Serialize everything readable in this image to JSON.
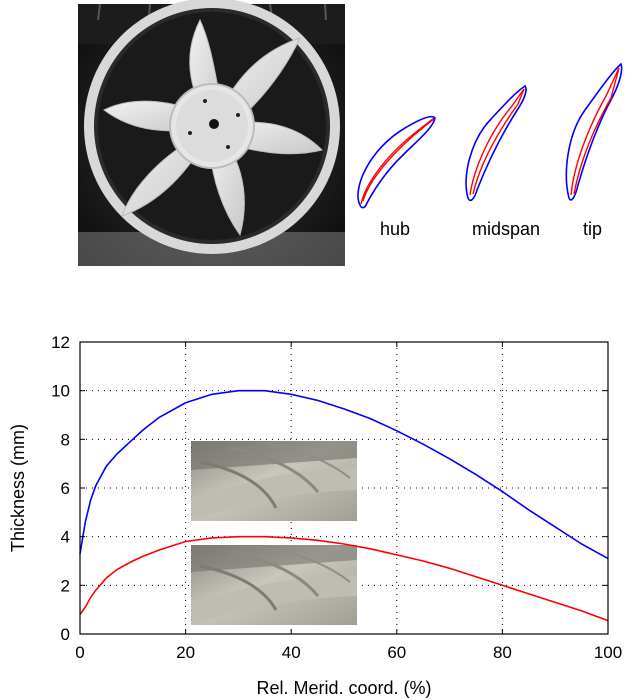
{
  "profiles": {
    "labels": [
      "hub",
      "midspan",
      "tip"
    ]
  },
  "chart_data": {
    "type": "line",
    "xlabel": "Rel. Merid. coord. (%)",
    "ylabel": "Thickness (mm)",
    "xlim": [
      0,
      100
    ],
    "ylim": [
      0,
      12
    ],
    "xticks": [
      0,
      20,
      40,
      60,
      80,
      100
    ],
    "yticks": [
      0,
      2,
      4,
      6,
      8,
      10,
      12
    ],
    "grid": true,
    "series": [
      {
        "color": "#0000ff",
        "x": [
          0,
          1,
          2,
          3,
          5,
          7,
          10,
          12,
          15,
          20,
          25,
          30,
          35,
          40,
          45,
          50,
          55,
          60,
          65,
          70,
          75,
          80,
          85,
          90,
          95,
          100
        ],
        "y": [
          3.3,
          4.6,
          5.5,
          6.1,
          6.9,
          7.4,
          8.0,
          8.4,
          8.9,
          9.5,
          9.85,
          10.0,
          10.0,
          9.85,
          9.6,
          9.25,
          8.85,
          8.35,
          7.8,
          7.2,
          6.55,
          5.85,
          5.1,
          4.4,
          3.7,
          3.1
        ]
      },
      {
        "color": "#ff0000",
        "x": [
          0,
          1,
          2,
          3,
          5,
          7,
          10,
          12,
          15,
          20,
          25,
          30,
          35,
          40,
          45,
          50,
          55,
          60,
          65,
          70,
          75,
          80,
          85,
          90,
          95,
          100
        ],
        "y": [
          0.8,
          1.1,
          1.5,
          1.8,
          2.3,
          2.65,
          3.0,
          3.2,
          3.45,
          3.8,
          3.95,
          4.0,
          4.0,
          3.95,
          3.85,
          3.7,
          3.5,
          3.25,
          3.0,
          2.7,
          2.35,
          2.0,
          1.65,
          1.3,
          0.95,
          0.55
        ]
      }
    ]
  }
}
